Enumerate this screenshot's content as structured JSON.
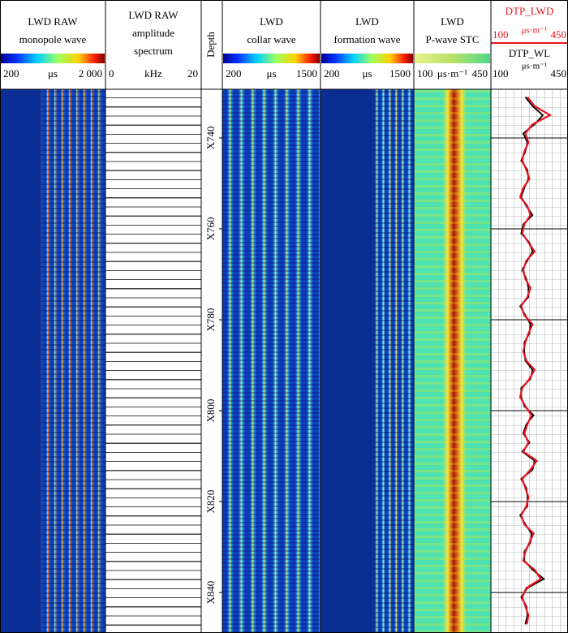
{
  "tracks": [
    {
      "title": [
        "LWD RAW",
        "monopole wave"
      ],
      "palette": "jet",
      "scale": {
        "lim": [
          200,
          2000
        ],
        "ticks": [
          200,
          {
            "value": 2000,
            "label": "2 000"
          }
        ],
        "unit": "μs"
      }
    },
    {
      "title": [
        "LWD RAW",
        "amplitude",
        "spectrum"
      ],
      "scale": {
        "lim": [
          0,
          20
        ],
        "ticks": [
          0,
          20
        ],
        "unit": "kHz"
      }
    },
    {
      "title": [
        "Depth"
      ]
    },
    {
      "title": [
        "LWD",
        "collar wave"
      ],
      "palette": "jet",
      "scale": {
        "lim": [
          200,
          1500
        ],
        "ticks": [
          200,
          1500
        ],
        "unit": "μs"
      }
    },
    {
      "title": [
        "LWD",
        "formation wave"
      ],
      "palette": "jet",
      "scale": {
        "lim": [
          200,
          1500
        ],
        "ticks": [
          200,
          1500
        ],
        "unit": "μs"
      }
    },
    {
      "title": [
        "LWD",
        "P-wave STC"
      ],
      "palette": "stc",
      "scale": {
        "lim": [
          100,
          450
        ],
        "ticks": [
          100,
          450
        ],
        "unit": "μs·m⁻¹"
      }
    }
  ],
  "chart_data": {
    "type": "line",
    "orientation": "vertical",
    "depth": [
      731,
      733,
      735,
      737,
      739,
      741,
      743,
      745,
      747,
      749,
      751,
      753,
      755,
      757,
      759,
      761,
      763,
      765,
      767,
      769,
      771,
      773,
      775,
      777,
      779,
      781,
      783,
      785,
      787,
      789,
      791,
      793,
      795,
      797,
      799,
      801,
      803,
      805,
      807,
      809,
      811,
      813,
      815,
      817,
      819,
      821,
      823,
      825,
      827,
      829,
      831,
      833,
      835,
      837,
      839,
      841,
      843,
      845,
      847
    ],
    "ylim": [
      729.3,
      848.9
    ],
    "yticks": [
      {
        "value": 740,
        "label": "X740"
      },
      {
        "value": 760,
        "label": "X760"
      },
      {
        "value": 780,
        "label": "X780"
      },
      {
        "value": 800,
        "label": "X800"
      },
      {
        "value": 820,
        "label": "X820"
      },
      {
        "value": 840,
        "label": "X840"
      }
    ],
    "xlim": [
      100,
      450
    ],
    "xticks": [
      100,
      450
    ],
    "x_unit": "μs·m⁻¹",
    "grid": true,
    "series": [
      {
        "name": "DTP_LWD",
        "color": "#e8131b",
        "values": [
          265,
          300,
          375,
          290,
          255,
          270,
          250,
          240,
          260,
          275,
          245,
          230,
          265,
          280,
          250,
          240,
          270,
          300,
          260,
          245,
          255,
          280,
          265,
          235,
          250,
          290,
          270,
          255,
          245,
          260,
          300,
          275,
          240,
          230,
          255,
          285,
          265,
          250,
          270,
          245,
          310,
          280,
          240,
          255,
          270,
          260,
          235,
          250,
          295,
          275,
          255,
          245,
          300,
          330,
          260,
          240,
          255,
          270,
          262
        ]
      },
      {
        "name": "DTP_WL",
        "color": "#000000",
        "values": [
          255,
          290,
          340,
          300,
          245,
          265,
          255,
          235,
          265,
          270,
          250,
          235,
          260,
          290,
          245,
          235,
          275,
          290,
          265,
          240,
          260,
          270,
          270,
          230,
          255,
          280,
          275,
          250,
          250,
          255,
          290,
          280,
          235,
          235,
          250,
          295,
          260,
          245,
          275,
          240,
          300,
          290,
          235,
          260,
          265,
          265,
          230,
          255,
          285,
          280,
          250,
          250,
          290,
          345,
          265,
          235,
          260,
          265,
          255
        ]
      }
    ]
  }
}
